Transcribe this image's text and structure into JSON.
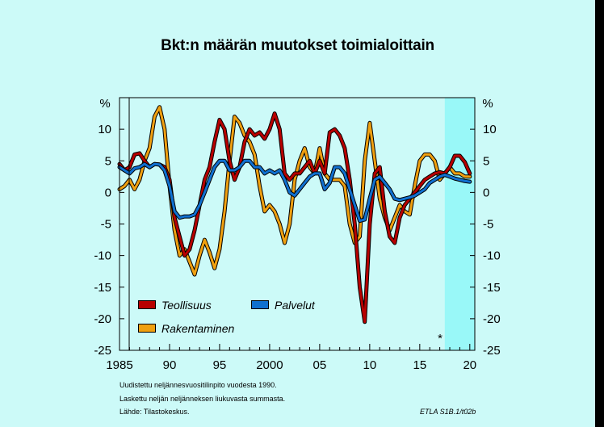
{
  "title": "Bkt:n määrän muutokset toimialoittain",
  "notes": [
    "Uudistettu neljännesvuositilinpito vuodesta 1990.",
    "Laskettu neljän neljänneksen liukuvasta summasta.",
    "Lähde:  Tilastokeskus."
  ],
  "source_code": "ETLA S1B.1/t02b",
  "forecast_marker": "*",
  "colors": {
    "background": "#ccfaf8",
    "forecast_shade": "#99f8f8",
    "teollisuus": "#b80000",
    "palvelut": "#1070d0",
    "rakentaminen": "#f0a010"
  },
  "chart_data": {
    "type": "line",
    "title": "Bkt:n määrän muutokset toimialoittain",
    "ylabel_left": "%",
    "ylabel_right": "%",
    "ylim": [
      -25,
      15
    ],
    "xlim": [
      1985,
      2020.5
    ],
    "x_tick_labels": [
      "1985",
      "90",
      "95",
      "2000",
      "05",
      "10",
      "15",
      "20"
    ],
    "x_tick_values": [
      1985,
      1990,
      1995,
      2000,
      2005,
      2010,
      2015,
      2020
    ],
    "y_tick_labels": [
      "10",
      "5",
      "0",
      "-5",
      "-10",
      "-15",
      "-20",
      "-25"
    ],
    "y_tick_values": [
      10,
      5,
      0,
      -5,
      -10,
      -15,
      -20,
      -25
    ],
    "forecast_start": 2017.5,
    "grid": false,
    "legend_position": "bottom-left",
    "series": [
      {
        "name": "Teollisuus",
        "points": [
          [
            1985,
            4.5
          ],
          [
            1985.5,
            3.5
          ],
          [
            1986,
            4
          ],
          [
            1986.5,
            6
          ],
          [
            1987,
            6.2
          ],
          [
            1987.5,
            5
          ],
          [
            1988,
            4
          ],
          [
            1988.5,
            4.5
          ],
          [
            1989,
            4.4
          ],
          [
            1989.5,
            4
          ],
          [
            1990,
            2
          ],
          [
            1990.5,
            -4
          ],
          [
            1991,
            -7
          ],
          [
            1991.5,
            -10
          ],
          [
            1992,
            -9
          ],
          [
            1992.5,
            -6
          ],
          [
            1993,
            -2
          ],
          [
            1993.5,
            2
          ],
          [
            1994,
            4
          ],
          [
            1994.5,
            8
          ],
          [
            1995,
            11.5
          ],
          [
            1995.5,
            10
          ],
          [
            1996,
            5
          ],
          [
            1996.5,
            2
          ],
          [
            1997,
            4
          ],
          [
            1997.5,
            8
          ],
          [
            1998,
            10
          ],
          [
            1998.5,
            9
          ],
          [
            1999,
            9.5
          ],
          [
            1999.5,
            8.5
          ],
          [
            2000,
            10
          ],
          [
            2000.5,
            12.5
          ],
          [
            2001,
            10
          ],
          [
            2001.5,
            3
          ],
          [
            2002,
            2
          ],
          [
            2002.5,
            3
          ],
          [
            2003,
            3
          ],
          [
            2003.5,
            4
          ],
          [
            2004,
            5
          ],
          [
            2004.5,
            3
          ],
          [
            2005,
            5
          ],
          [
            2005.5,
            3
          ],
          [
            2006,
            9.5
          ],
          [
            2006.5,
            10
          ],
          [
            2007,
            9
          ],
          [
            2007.5,
            7
          ],
          [
            2008,
            2
          ],
          [
            2008.5,
            -5
          ],
          [
            2009,
            -15
          ],
          [
            2009.5,
            -20.5
          ],
          [
            2010,
            -5
          ],
          [
            2010.5,
            3
          ],
          [
            2011,
            4
          ],
          [
            2011.5,
            -3
          ],
          [
            2012,
            -7
          ],
          [
            2012.5,
            -8
          ],
          [
            2013,
            -4
          ],
          [
            2013.5,
            -2
          ],
          [
            2014,
            -1
          ],
          [
            2014.5,
            0
          ],
          [
            2015,
            1
          ],
          [
            2015.5,
            2
          ],
          [
            2016,
            2.5
          ],
          [
            2016.5,
            3
          ],
          [
            2017,
            3.2
          ],
          [
            2017.5,
            3
          ],
          [
            2018,
            4
          ],
          [
            2018.5,
            5.8
          ],
          [
            2019,
            5.8
          ],
          [
            2019.5,
            4.8
          ],
          [
            2020,
            3
          ]
        ]
      },
      {
        "name": "Palvelut",
        "points": [
          [
            1985,
            4
          ],
          [
            1985.5,
            3.5
          ],
          [
            1986,
            3
          ],
          [
            1986.5,
            3.8
          ],
          [
            1987,
            4
          ],
          [
            1987.5,
            4.5
          ],
          [
            1988,
            4
          ],
          [
            1988.5,
            4.5
          ],
          [
            1989,
            4.4
          ],
          [
            1989.5,
            3.5
          ],
          [
            1990,
            1
          ],
          [
            1990.5,
            -3
          ],
          [
            1991,
            -4
          ],
          [
            1991.5,
            -3.8
          ],
          [
            1992,
            -3.8
          ],
          [
            1992.5,
            -3.5
          ],
          [
            1993,
            -2
          ],
          [
            1993.5,
            0
          ],
          [
            1994,
            2
          ],
          [
            1994.5,
            4
          ],
          [
            1995,
            5
          ],
          [
            1995.5,
            5
          ],
          [
            1996,
            3.5
          ],
          [
            1996.5,
            3.5
          ],
          [
            1997,
            4
          ],
          [
            1997.5,
            5
          ],
          [
            1998,
            5
          ],
          [
            1998.5,
            4
          ],
          [
            1999,
            4
          ],
          [
            1999.5,
            3
          ],
          [
            2000,
            3.5
          ],
          [
            2000.5,
            3
          ],
          [
            2001,
            3.5
          ],
          [
            2001.5,
            2
          ],
          [
            2002,
            0
          ],
          [
            2002.5,
            -0.5
          ],
          [
            2003,
            0.5
          ],
          [
            2003.5,
            1.5
          ],
          [
            2004,
            2.5
          ],
          [
            2004.5,
            3
          ],
          [
            2005,
            3
          ],
          [
            2005.5,
            0.5
          ],
          [
            2006,
            1.5
          ],
          [
            2006.5,
            4
          ],
          [
            2007,
            4
          ],
          [
            2007.5,
            3
          ],
          [
            2008,
            0.5
          ],
          [
            2008.5,
            -2
          ],
          [
            2009,
            -4.5
          ],
          [
            2009.5,
            -4.3
          ],
          [
            2010,
            -1
          ],
          [
            2010.5,
            2
          ],
          [
            2011,
            2.5
          ],
          [
            2011.5,
            1.5
          ],
          [
            2012,
            0.5
          ],
          [
            2012.5,
            -1
          ],
          [
            2013,
            -1.2
          ],
          [
            2013.5,
            -1
          ],
          [
            2014,
            -0.8
          ],
          [
            2014.5,
            -0.5
          ],
          [
            2015,
            0
          ],
          [
            2015.5,
            0.5
          ],
          [
            2016,
            1.5
          ],
          [
            2016.5,
            2
          ],
          [
            2017,
            2.5
          ],
          [
            2017.5,
            2.8
          ],
          [
            2018,
            2.5
          ],
          [
            2018.5,
            2.2
          ],
          [
            2019,
            2
          ],
          [
            2019.5,
            1.8
          ],
          [
            2020,
            1.7
          ]
        ]
      },
      {
        "name": "Rakentaminen",
        "points": [
          [
            1985,
            0.5
          ],
          [
            1985.5,
            1
          ],
          [
            1986,
            2
          ],
          [
            1986.5,
            0.5
          ],
          [
            1987,
            2
          ],
          [
            1987.5,
            5
          ],
          [
            1988,
            7
          ],
          [
            1988.5,
            12
          ],
          [
            1989,
            13.5
          ],
          [
            1989.5,
            10
          ],
          [
            1990,
            1
          ],
          [
            1990.5,
            -6
          ],
          [
            1991,
            -10
          ],
          [
            1991.5,
            -9
          ],
          [
            1992,
            -11
          ],
          [
            1992.5,
            -13
          ],
          [
            1993,
            -10
          ],
          [
            1993.5,
            -7.5
          ],
          [
            1994,
            -9.5
          ],
          [
            1994.5,
            -12
          ],
          [
            1995,
            -9
          ],
          [
            1995.5,
            -3
          ],
          [
            1996,
            5
          ],
          [
            1996.5,
            12
          ],
          [
            1997,
            11
          ],
          [
            1997.5,
            9
          ],
          [
            1998,
            8
          ],
          [
            1998.5,
            6
          ],
          [
            1999,
            1
          ],
          [
            1999.5,
            -3
          ],
          [
            2000,
            -2
          ],
          [
            2000.5,
            -3
          ],
          [
            2001,
            -5
          ],
          [
            2001.5,
            -8
          ],
          [
            2002,
            -5
          ],
          [
            2002.5,
            2
          ],
          [
            2003,
            5
          ],
          [
            2003.5,
            7
          ],
          [
            2004,
            4
          ],
          [
            2004.5,
            3
          ],
          [
            2005,
            7
          ],
          [
            2005.5,
            3
          ],
          [
            2006,
            2
          ],
          [
            2006.5,
            2
          ],
          [
            2007,
            2
          ],
          [
            2007.5,
            1
          ],
          [
            2008,
            -5
          ],
          [
            2008.5,
            -8
          ],
          [
            2009,
            -7
          ],
          [
            2009.5,
            5
          ],
          [
            2010,
            11
          ],
          [
            2010.5,
            5
          ],
          [
            2011,
            -1
          ],
          [
            2011.5,
            -4
          ],
          [
            2012,
            -6
          ],
          [
            2012.5,
            -4
          ],
          [
            2013,
            -2
          ],
          [
            2013.5,
            -3
          ],
          [
            2014,
            -3.5
          ],
          [
            2014.5,
            1
          ],
          [
            2015,
            5
          ],
          [
            2015.5,
            6
          ],
          [
            2016,
            6
          ],
          [
            2016.5,
            5
          ],
          [
            2017,
            2
          ],
          [
            2017.5,
            3
          ],
          [
            2018,
            4
          ],
          [
            2018.5,
            3
          ],
          [
            2019,
            3
          ],
          [
            2019.5,
            2.5
          ],
          [
            2020,
            2.5
          ]
        ]
      }
    ]
  }
}
